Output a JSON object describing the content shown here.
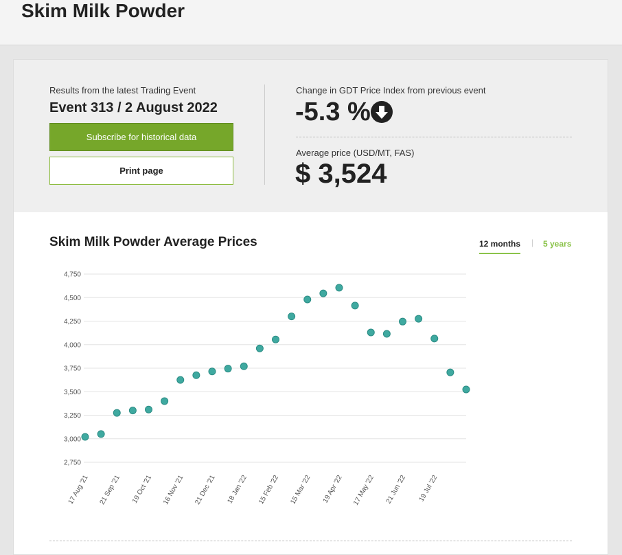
{
  "header": {
    "title": "Skim Milk Powder"
  },
  "summary": {
    "results_label": "Results from the latest Trading Event",
    "event": "Event 313 / 2 August 2022",
    "subscribe_button": "Subscribe for historical data",
    "print_button": "Print page",
    "change_label": "Change in GDT Price Index from previous event",
    "change_value": "-5.3 %",
    "average_label": "Average price (USD/MT, FAS)",
    "average_value": "$ 3,524"
  },
  "tabs": [
    "12 months",
    "5 years"
  ],
  "chart_data": {
    "type": "line",
    "title": "Skim Milk Powder Average Prices",
    "categories": [
      "17 Aug '21",
      null,
      "21 Sep '21",
      null,
      "19 Oct '21",
      null,
      "16 Nov '21",
      null,
      "21 Dec '21",
      null,
      "18 Jan '22",
      null,
      "15 Feb '22",
      null,
      "15 Mar '22",
      null,
      "19 Apr '22",
      null,
      "17 May '22",
      null,
      "21 Jun '22",
      null,
      "19 Jul '22",
      null,
      null
    ],
    "series": [
      {
        "name": "Skim Milk Powder",
        "color": "#3fa9a0",
        "values": [
          3020,
          3050,
          3275,
          3300,
          3310,
          3400,
          3625,
          3675,
          3715,
          3745,
          3770,
          3960,
          4055,
          4300,
          4480,
          4545,
          4605,
          4415,
          4130,
          4115,
          4245,
          4275,
          4065,
          3705,
          3524
        ]
      }
    ],
    "ylim": [
      2750,
      4750
    ],
    "yticks": [
      {
        "value": 2750,
        "label": "2,750"
      },
      {
        "value": 3000,
        "label": "3,000"
      },
      {
        "value": 3250,
        "label": "3,250"
      },
      {
        "value": 3500,
        "label": "3,500"
      },
      {
        "value": 3750,
        "label": "3,750"
      },
      {
        "value": 4000,
        "label": "4,000"
      },
      {
        "value": 4250,
        "label": "4,250"
      },
      {
        "value": 4500,
        "label": "4,500"
      },
      {
        "value": 4750,
        "label": "4,750"
      }
    ],
    "grid": true
  }
}
